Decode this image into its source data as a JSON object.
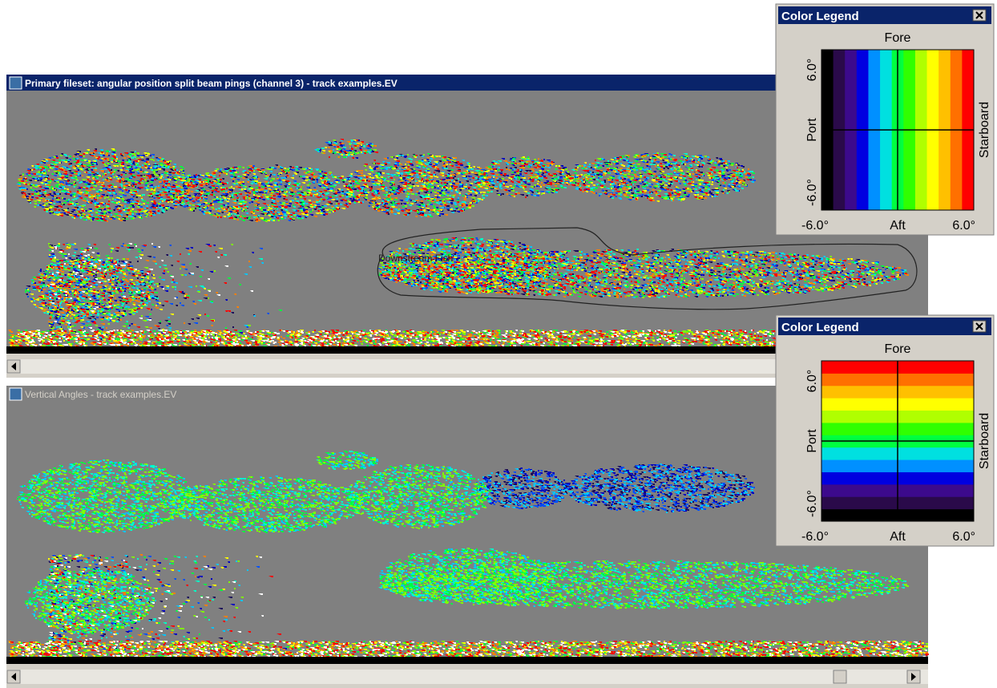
{
  "windows": [
    {
      "title": "Primary fileset: angular position split beam pings (channel 3) - track examples.EV",
      "region_label": "Downstream Fish"
    },
    {
      "title": "Vertical Angles - track examples.EV"
    }
  ],
  "legends": [
    {
      "title": "Color Legend",
      "top": "Fore",
      "left": "Port",
      "right": "Starboard",
      "left_top": "6.0°",
      "left_bottom": "-6.0°",
      "bottom_left": "-6.0°",
      "bottom_center": "Aft",
      "bottom_right": "6.0°"
    },
    {
      "title": "Color Legend",
      "top": "Fore",
      "left": "Port",
      "right": "Starboard",
      "left_top": "6.0°",
      "left_bottom": "-6.0°",
      "bottom_left": "-6.0°",
      "bottom_center": "Aft",
      "bottom_right": "6.0°"
    }
  ]
}
